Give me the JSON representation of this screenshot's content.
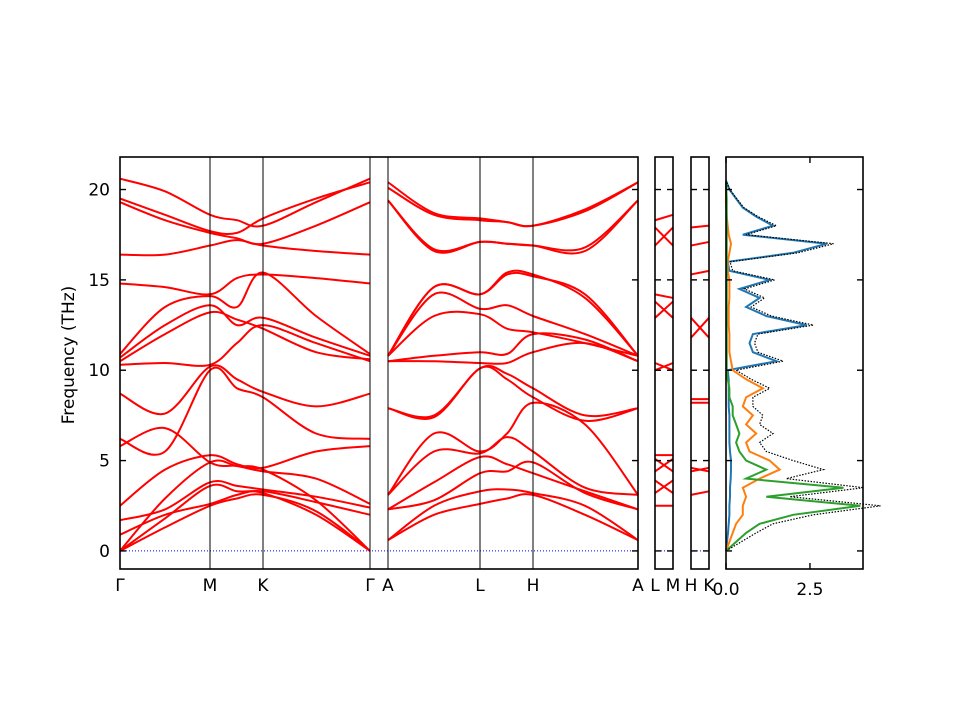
{
  "chart_data": {
    "type": "line",
    "title": "",
    "ylabel": "Frequency (THz)",
    "ylim": [
      -1.0,
      21.8
    ],
    "yticks": [
      "0",
      "5",
      "10",
      "15",
      "20"
    ],
    "ytick_values": [
      0,
      5,
      10,
      15,
      20
    ],
    "band_color": "#ff0000",
    "zero_line_color": "#0000ff",
    "panels": [
      {
        "name": "main",
        "xlabels": [
          "Γ",
          "M",
          "K",
          "Γ",
          "A",
          "L",
          "H",
          "A"
        ],
        "segments": [
          {
            "path": [
              "Γ",
              "M",
              "K",
              "Γ"
            ],
            "bands": [
              [
                0,
                1.3,
                2.5,
                2.9,
                3.1,
                2.2,
                0
              ],
              [
                0,
                1.8,
                3.6,
                3.3,
                3.2,
                2.0,
                0
              ],
              [
                0,
                2.9,
                4.9,
                4.7,
                4.5,
                2.8,
                0
              ],
              [
                0.9,
                2.0,
                2.6,
                3.1,
                3.3,
                2.7,
                2.0
              ],
              [
                1.7,
                2.3,
                3.8,
                3.6,
                3.4,
                3.0,
                2.4
              ],
              [
                2.5,
                4.5,
                5.3,
                4.8,
                4.6,
                5.5,
                5.8
              ],
              [
                5.8,
                6.8,
                4.9,
                4.7,
                4.4,
                4.0,
                2.6
              ],
              [
                6.2,
                5.5,
                10.0,
                9.0,
                8.5,
                6.5,
                6.2
              ],
              [
                8.7,
                7.6,
                10.2,
                9.5,
                8.8,
                8.0,
                8.7
              ],
              [
                10.3,
                10.4,
                10.3,
                11.5,
                12.5,
                11.5,
                10.5
              ],
              [
                10.5,
                12.0,
                13.2,
                12.8,
                12.3,
                11.0,
                10.6
              ],
              [
                10.7,
                12.5,
                13.6,
                12.5,
                12.9,
                11.8,
                10.8
              ],
              [
                10.9,
                13.5,
                14.1,
                13.5,
                15.4,
                13.0,
                10.9
              ],
              [
                14.8,
                14.6,
                14.2,
                15.1,
                15.3,
                15.1,
                14.8
              ],
              [
                16.4,
                16.4,
                16.9,
                17.2,
                16.9,
                16.6,
                16.4
              ],
              [
                19.3,
                18.3,
                17.6,
                17.3,
                17.0,
                18.0,
                19.3
              ],
              [
                19.5,
                18.6,
                17.7,
                17.6,
                18.4,
                19.5,
                20.4
              ],
              [
                20.6,
                19.9,
                18.6,
                18.3,
                18.0,
                19.3,
                20.6
              ]
            ]
          },
          {
            "path": [
              "A",
              "L",
              "H",
              "A"
            ],
            "bands": [
              [
                0.6,
                2.0,
                2.6,
                2.9,
                3.1,
                2.0,
                0.6
              ],
              [
                0.6,
                2.5,
                3.3,
                3.4,
                3.2,
                2.5,
                0.6
              ],
              [
                2.3,
                2.8,
                4.3,
                4.4,
                4.9,
                3.2,
                2.3
              ],
              [
                2.3,
                3.8,
                5.2,
                4.8,
                4.3,
                3.3,
                2.3
              ],
              [
                3.1,
                5.5,
                5.4,
                6.3,
                5.5,
                3.5,
                3.1
              ],
              [
                3.1,
                6.5,
                5.5,
                6.5,
                8.2,
                7.0,
                3.1
              ],
              [
                7.9,
                7.4,
                10.1,
                9.5,
                8.5,
                7.2,
                7.9
              ],
              [
                7.9,
                7.5,
                10.1,
                9.8,
                9.0,
                7.5,
                7.9
              ],
              [
                10.5,
                10.5,
                10.4,
                10.4,
                11.0,
                11.5,
                10.5
              ],
              [
                10.5,
                10.8,
                11.0,
                10.9,
                12.0,
                11.7,
                10.5
              ],
              [
                10.8,
                13.0,
                13.1,
                12.3,
                12.1,
                11.5,
                10.8
              ],
              [
                10.8,
                14.2,
                13.4,
                13.6,
                13.0,
                12.0,
                10.8
              ],
              [
                10.8,
                14.6,
                14.2,
                15.4,
                15.3,
                14.0,
                10.8
              ],
              [
                10.8,
                14.6,
                14.2,
                15.3,
                15.2,
                14.2,
                10.8
              ],
              [
                19.4,
                16.6,
                17.1,
                17.0,
                16.9,
                16.6,
                19.4
              ],
              [
                19.4,
                16.7,
                17.1,
                17.0,
                16.9,
                16.8,
                19.4
              ],
              [
                20.1,
                18.6,
                18.3,
                18.2,
                18.0,
                18.8,
                20.4
              ],
              [
                20.4,
                18.7,
                18.4,
                18.2,
                18.0,
                18.9,
                20.4
              ]
            ]
          }
        ]
      },
      {
        "name": "L-M",
        "xlabels": [
          "L",
          "M"
        ],
        "bands": [
          [
            2.5,
            2.5
          ],
          [
            3.2,
            3.9
          ],
          [
            3.9,
            3.2
          ],
          [
            4.4,
            5.1
          ],
          [
            5.1,
            4.4
          ],
          [
            5.3,
            5.3
          ],
          [
            10.0,
            10.4
          ],
          [
            10.4,
            10.0
          ],
          [
            12.9,
            13.8
          ],
          [
            13.8,
            12.9
          ],
          [
            14.2,
            14.0
          ],
          [
            16.9,
            17.9
          ],
          [
            17.9,
            16.9
          ],
          [
            18.3,
            18.6
          ]
        ]
      },
      {
        "name": "H-K",
        "xlabels": [
          "H",
          "K"
        ],
        "bands": [
          [
            3.1,
            3.3
          ],
          [
            4.4,
            4.6
          ],
          [
            4.6,
            4.4
          ],
          [
            8.2,
            8.2
          ],
          [
            8.4,
            8.4
          ],
          [
            11.8,
            12.9
          ],
          [
            12.9,
            11.8
          ],
          [
            15.3,
            15.5
          ],
          [
            16.9,
            17.1
          ],
          [
            17.9,
            18.0
          ]
        ]
      },
      {
        "name": "DOS",
        "xticks": [
          "0.0",
          "2.5"
        ],
        "xtick_values": [
          0,
          2.5
        ],
        "xlim": [
          0,
          4.08
        ],
        "freq": [
          0,
          0.5,
          1,
          1.5,
          2,
          2.5,
          3,
          3.5,
          4,
          4.5,
          5,
          5.5,
          6,
          6.5,
          7,
          7.5,
          8,
          8.5,
          9,
          9.5,
          10,
          10.5,
          11,
          11.5,
          12,
          12.5,
          13,
          13.5,
          14,
          14.5,
          15,
          15.5,
          16,
          16.5,
          17,
          17.5,
          18,
          18.5,
          19,
          19.5,
          20,
          20.5
        ],
        "series": [
          {
            "name": "blue",
            "color": "#1f77b4",
            "values": [
              0,
              0.03,
              0.06,
              0.08,
              0.1,
              0.1,
              0.12,
              0.12,
              0.14,
              0.15,
              0.15,
              0.12,
              0.1,
              0.1,
              0.1,
              0.1,
              0.08,
              0.08,
              0.08,
              0.08,
              0.05,
              1.5,
              0.8,
              0.7,
              0.8,
              2.4,
              1.2,
              0.6,
              1.0,
              0.4,
              1.3,
              0.1,
              0.05,
              2.0,
              3.0,
              0.5,
              1.4,
              0.9,
              0.5,
              0.3,
              0.1,
              0
            ]
          },
          {
            "name": "orange",
            "color": "#ff7f0e",
            "values": [
              0,
              0.1,
              0.2,
              0.3,
              0.5,
              0.5,
              0.6,
              0.5,
              1.0,
              1.6,
              1.3,
              0.7,
              0.6,
              0.9,
              0.6,
              0.8,
              0.5,
              0.6,
              1.1,
              0.6,
              0.2,
              0.15,
              0.1,
              0.1,
              0.1,
              0.08,
              0.08,
              0.08,
              0.1,
              0.1,
              0.1,
              0.05,
              0.05,
              0.1,
              0.15,
              0.08,
              0.05,
              0.02,
              0.01,
              0,
              0,
              0
            ]
          },
          {
            "name": "green",
            "color": "#2ca02c",
            "values": [
              0,
              0.3,
              0.6,
              1.0,
              2.0,
              4.0,
              1.2,
              3.5,
              0.6,
              1.2,
              0.6,
              0.4,
              0.3,
              0.4,
              0.3,
              0.2,
              0.2,
              0.1,
              0.1,
              0.05,
              0.02,
              0.02,
              0.02,
              0.02,
              0.02,
              0.02,
              0.02,
              0.02,
              0.02,
              0.02,
              0.02,
              0.02,
              0.02,
              0.02,
              0.02,
              0.02,
              0.02,
              0.02,
              0.02,
              0.02,
              0.01,
              0
            ]
          },
          {
            "name": "total",
            "color": "#000000",
            "dotted": true,
            "values": [
              0,
              0.45,
              0.9,
              1.4,
              2.6,
              4.6,
              1.9,
              4.1,
              1.8,
              2.9,
              2.0,
              1.2,
              1.0,
              1.4,
              1.0,
              1.1,
              0.8,
              0.8,
              1.3,
              0.75,
              0.3,
              1.7,
              0.95,
              0.85,
              0.95,
              2.6,
              1.35,
              0.75,
              1.15,
              0.55,
              1.45,
              0.2,
              0.12,
              2.15,
              3.2,
              0.6,
              1.5,
              0.95,
              0.53,
              0.32,
              0.11,
              0
            ]
          }
        ]
      }
    ]
  }
}
